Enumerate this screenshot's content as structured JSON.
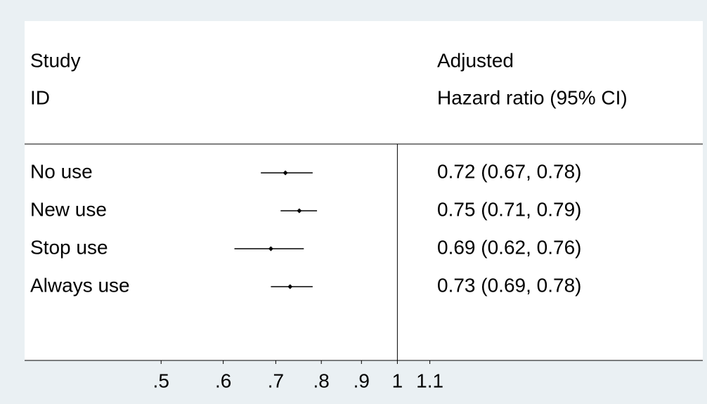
{
  "chart_data": {
    "type": "forest",
    "left_header": [
      "Study",
      "ID"
    ],
    "right_header": [
      "Adjusted",
      "Hazard ratio (95% CI)"
    ],
    "categories": [
      "No use",
      "New use",
      "Stop use",
      "Always use"
    ],
    "values": [
      0.72,
      0.75,
      0.69,
      0.73
    ],
    "ci_low": [
      0.67,
      0.71,
      0.62,
      0.69
    ],
    "ci_high": [
      0.78,
      0.79,
      0.76,
      0.78
    ],
    "value_labels": [
      "0.72 (0.67, 0.78)",
      "0.75 (0.71, 0.79)",
      "0.69 (0.62, 0.76)",
      "0.73 (0.69, 0.78)"
    ],
    "reference_line": 1,
    "xscale": "log",
    "xlim": [
      0.335,
      2.45
    ],
    "xticks": [
      {
        "value": 0.5,
        "label": ".5"
      },
      {
        "value": 0.6,
        "label": ".6"
      },
      {
        "value": 0.7,
        "label": ".7"
      },
      {
        "value": 0.8,
        "label": ".8"
      },
      {
        "value": 0.9,
        "label": ".9"
      },
      1,
      1.1
    ],
    "color": "#000000"
  }
}
